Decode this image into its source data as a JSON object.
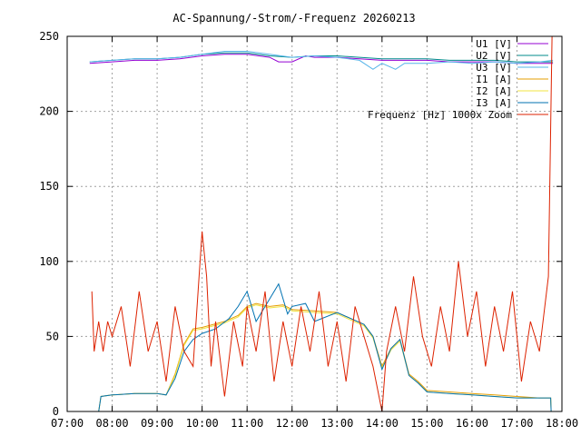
{
  "chart_data": {
    "type": "line",
    "title": "AC-Spannung/-Strom/-Frequenz 20260213",
    "xlabel": "",
    "ylabel": "",
    "xlim": [
      7,
      18
    ],
    "ylim": [
      0,
      250
    ],
    "x_ticks": [
      "07:00",
      "08:00",
      "09:00",
      "10:00",
      "11:00",
      "12:00",
      "13:00",
      "14:00",
      "15:00",
      "16:00",
      "17:00",
      "18:00"
    ],
    "y_ticks": [
      0,
      50,
      100,
      150,
      200,
      250
    ],
    "grid": true,
    "legend_position": "top-right",
    "series": [
      {
        "name": "U1 [V]",
        "color": "#9400d3",
        "points": [
          [
            7.5,
            232
          ],
          [
            8,
            233
          ],
          [
            8.5,
            234
          ],
          [
            9,
            234
          ],
          [
            9.5,
            235
          ],
          [
            10,
            237
          ],
          [
            10.5,
            238
          ],
          [
            11,
            238
          ],
          [
            11.5,
            236
          ],
          [
            11.7,
            233
          ],
          [
            12,
            233
          ],
          [
            12.3,
            237
          ],
          [
            12.5,
            236
          ],
          [
            13,
            236
          ],
          [
            13.5,
            235
          ],
          [
            14,
            234
          ],
          [
            14.5,
            234
          ],
          [
            15,
            234
          ],
          [
            15.5,
            233
          ],
          [
            16,
            233
          ],
          [
            16.5,
            233
          ],
          [
            17,
            232
          ],
          [
            17.5,
            232
          ],
          [
            17.8,
            232
          ]
        ]
      },
      {
        "name": "U2 [V]",
        "color": "#008b8b",
        "points": [
          [
            7.5,
            233
          ],
          [
            8,
            234
          ],
          [
            8.5,
            235
          ],
          [
            9,
            235
          ],
          [
            9.5,
            236
          ],
          [
            10,
            238
          ],
          [
            10.5,
            239
          ],
          [
            11,
            239
          ],
          [
            11.5,
            237
          ],
          [
            12,
            236
          ],
          [
            12.5,
            237
          ],
          [
            13,
            237
          ],
          [
            13.5,
            236
          ],
          [
            14,
            235
          ],
          [
            14.5,
            235
          ],
          [
            15,
            235
          ],
          [
            15.5,
            234
          ],
          [
            16,
            234
          ],
          [
            16.5,
            234
          ],
          [
            17,
            233
          ],
          [
            17.5,
            233
          ],
          [
            17.8,
            233
          ]
        ]
      },
      {
        "name": "U3 [V]",
        "color": "#56b4e9",
        "points": [
          [
            7.5,
            233
          ],
          [
            8,
            234
          ],
          [
            8.5,
            235
          ],
          [
            9,
            235
          ],
          [
            9.5,
            236
          ],
          [
            10,
            238
          ],
          [
            10.5,
            240
          ],
          [
            11,
            240
          ],
          [
            11.5,
            238
          ],
          [
            12,
            236
          ],
          [
            12.5,
            237
          ],
          [
            13,
            236
          ],
          [
            13.5,
            234
          ],
          [
            13.8,
            228
          ],
          [
            14,
            232
          ],
          [
            14.3,
            228
          ],
          [
            14.5,
            232
          ],
          [
            15,
            232
          ],
          [
            15.5,
            233
          ],
          [
            16,
            232
          ],
          [
            16.5,
            233
          ],
          [
            17,
            232
          ],
          [
            17.5,
            233
          ],
          [
            17.8,
            234
          ]
        ]
      },
      {
        "name": "I1 [A]",
        "color": "#e69f00",
        "points": [
          [
            7.7,
            0
          ],
          [
            7.75,
            10
          ],
          [
            8,
            11
          ],
          [
            8.5,
            12
          ],
          [
            9,
            12
          ],
          [
            9.2,
            11
          ],
          [
            9.4,
            25
          ],
          [
            9.6,
            45
          ],
          [
            9.8,
            55
          ],
          [
            10,
            56
          ],
          [
            10.5,
            60
          ],
          [
            10.8,
            64
          ],
          [
            11,
            70
          ],
          [
            11.2,
            72
          ],
          [
            11.5,
            70
          ],
          [
            11.8,
            71
          ],
          [
            12,
            68
          ],
          [
            12.5,
            67
          ],
          [
            13,
            66
          ],
          [
            13.3,
            62
          ],
          [
            13.6,
            58
          ],
          [
            13.8,
            50
          ],
          [
            14,
            30
          ],
          [
            14.2,
            42
          ],
          [
            14.4,
            48
          ],
          [
            14.6,
            25
          ],
          [
            14.8,
            20
          ],
          [
            15,
            14
          ],
          [
            15.5,
            13
          ],
          [
            16,
            12
          ],
          [
            16.5,
            11
          ],
          [
            17,
            10
          ],
          [
            17.5,
            9
          ],
          [
            17.75,
            9
          ],
          [
            17.76,
            0
          ]
        ]
      },
      {
        "name": "I2 [A]",
        "color": "#f0e442",
        "points": [
          [
            7.7,
            0
          ],
          [
            7.75,
            10
          ],
          [
            8,
            11
          ],
          [
            8.5,
            12
          ],
          [
            9,
            12
          ],
          [
            9.2,
            11
          ],
          [
            9.4,
            24
          ],
          [
            9.6,
            44
          ],
          [
            9.8,
            54
          ],
          [
            10,
            55
          ],
          [
            10.5,
            59
          ],
          [
            10.8,
            63
          ],
          [
            11,
            69
          ],
          [
            11.2,
            71
          ],
          [
            11.5,
            69
          ],
          [
            11.8,
            70
          ],
          [
            12,
            67
          ],
          [
            12.5,
            66
          ],
          [
            13,
            65
          ],
          [
            13.3,
            61
          ],
          [
            13.6,
            57
          ],
          [
            13.8,
            49
          ],
          [
            14,
            29
          ],
          [
            14.2,
            41
          ],
          [
            14.4,
            47
          ],
          [
            14.6,
            24
          ],
          [
            14.8,
            19
          ],
          [
            15,
            13
          ],
          [
            15.5,
            12
          ],
          [
            16,
            11
          ],
          [
            16.5,
            10
          ],
          [
            17,
            9
          ],
          [
            17.5,
            9
          ],
          [
            17.75,
            9
          ],
          [
            17.76,
            0
          ]
        ]
      },
      {
        "name": "I3 [A]",
        "color": "#0072b2",
        "points": [
          [
            7.7,
            0
          ],
          [
            7.75,
            10
          ],
          [
            8,
            11
          ],
          [
            8.5,
            12
          ],
          [
            9,
            12
          ],
          [
            9.2,
            11
          ],
          [
            9.4,
            22
          ],
          [
            9.6,
            40
          ],
          [
            9.8,
            48
          ],
          [
            10,
            52
          ],
          [
            10.3,
            55
          ],
          [
            10.6,
            62
          ],
          [
            10.8,
            70
          ],
          [
            11,
            80
          ],
          [
            11.2,
            60
          ],
          [
            11.5,
            75
          ],
          [
            11.7,
            85
          ],
          [
            11.9,
            65
          ],
          [
            12,
            70
          ],
          [
            12.3,
            72
          ],
          [
            12.5,
            60
          ],
          [
            13,
            66
          ],
          [
            13.3,
            62
          ],
          [
            13.6,
            58
          ],
          [
            13.8,
            50
          ],
          [
            14,
            28
          ],
          [
            14.2,
            42
          ],
          [
            14.4,
            48
          ],
          [
            14.6,
            24
          ],
          [
            14.8,
            19
          ],
          [
            15,
            13
          ],
          [
            15.5,
            12
          ],
          [
            16,
            11
          ],
          [
            16.5,
            10
          ],
          [
            17,
            9
          ],
          [
            17.5,
            9
          ],
          [
            17.75,
            9
          ],
          [
            17.76,
            0
          ]
        ]
      },
      {
        "name": "Frequenz [Hz] 1000x Zoom",
        "color": "#dd2200",
        "points": [
          [
            7.55,
            80
          ],
          [
            7.6,
            40
          ],
          [
            7.7,
            60
          ],
          [
            7.8,
            40
          ],
          [
            7.9,
            60
          ],
          [
            8,
            50
          ],
          [
            8.2,
            70
          ],
          [
            8.4,
            30
          ],
          [
            8.6,
            80
          ],
          [
            8.8,
            40
          ],
          [
            9,
            60
          ],
          [
            9.2,
            20
          ],
          [
            9.4,
            70
          ],
          [
            9.6,
            40
          ],
          [
            9.8,
            30
          ],
          [
            10,
            120
          ],
          [
            10.1,
            90
          ],
          [
            10.2,
            30
          ],
          [
            10.3,
            60
          ],
          [
            10.5,
            10
          ],
          [
            10.7,
            60
          ],
          [
            10.9,
            30
          ],
          [
            11,
            70
          ],
          [
            11.2,
            40
          ],
          [
            11.4,
            80
          ],
          [
            11.6,
            20
          ],
          [
            11.8,
            60
          ],
          [
            12,
            30
          ],
          [
            12.2,
            70
          ],
          [
            12.4,
            40
          ],
          [
            12.6,
            80
          ],
          [
            12.8,
            30
          ],
          [
            13,
            60
          ],
          [
            13.2,
            20
          ],
          [
            13.4,
            70
          ],
          [
            13.6,
            50
          ],
          [
            13.8,
            30
          ],
          [
            14,
            0
          ],
          [
            14.1,
            40
          ],
          [
            14.3,
            70
          ],
          [
            14.5,
            40
          ],
          [
            14.7,
            90
          ],
          [
            14.9,
            50
          ],
          [
            15.1,
            30
          ],
          [
            15.3,
            70
          ],
          [
            15.5,
            40
          ],
          [
            15.7,
            100
          ],
          [
            15.9,
            50
          ],
          [
            16.1,
            80
          ],
          [
            16.3,
            30
          ],
          [
            16.5,
            70
          ],
          [
            16.7,
            40
          ],
          [
            16.9,
            80
          ],
          [
            17.1,
            20
          ],
          [
            17.3,
            60
          ],
          [
            17.5,
            40
          ],
          [
            17.7,
            90
          ],
          [
            17.78,
            250
          ]
        ]
      }
    ]
  }
}
